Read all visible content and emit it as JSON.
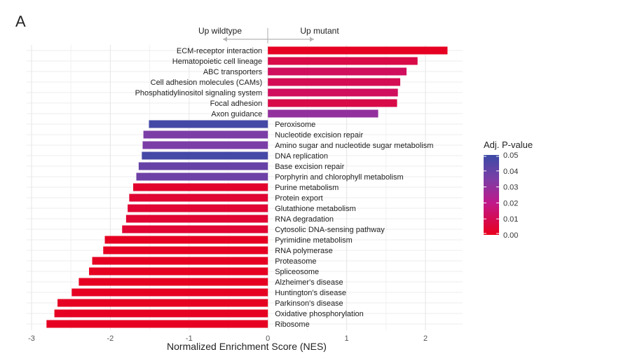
{
  "panel_label": "A",
  "chart_data": {
    "type": "bar",
    "orientation": "horizontal",
    "xlabel": "Normalized Enrichment Score (NES)",
    "xlim": [
      -3,
      2.5
    ],
    "xticks": [
      -3,
      -2,
      -1,
      0,
      1,
      2
    ],
    "xtick_labels": [
      "-3",
      "-2",
      "-1",
      "0",
      "1",
      "2"
    ],
    "direction_labels": {
      "left": "Up wildtype",
      "right": "Up mutant"
    },
    "colors": {
      "high": "#e8001c",
      "mid": "#d4107a",
      "low_mid": "#7b3ea6",
      "low": "#3b4ba6",
      "grid": "#ececec"
    },
    "legend": {
      "title": "Adj. P-value",
      "min": 0.0,
      "max": 0.05,
      "ticks": [
        "0.05",
        "0.04",
        "0.03",
        "0.02",
        "0.01",
        "0.00"
      ]
    },
    "categories": [
      "ECM-receptor interaction",
      "Hematopoietic cell lineage",
      "ABC transporters",
      "Cell adhesion molecules (CAMs)",
      "Phosphatidylinositol signaling system",
      "Focal adhesion",
      "Axon guidance",
      "Peroxisome",
      "Nucleotide excision repair",
      "Amino sugar and nucleotide sugar metabolism",
      "DNA replication",
      "Base excision repair",
      "Porphyrin and chlorophyll metabolism",
      "Purine metabolism",
      "Protein export",
      "Glutathione metabolism",
      "RNA degradation",
      "Cytosolic DNA-sensing pathway",
      "Pyrimidine metabolism",
      "RNA polymerase",
      "Proteasome",
      "Spliceosome",
      "Alzheimer's disease",
      "Huntington's disease",
      "Parkinson's disease",
      "Oxidative phosphorylation",
      "Ribosome"
    ],
    "values": [
      2.28,
      1.9,
      1.76,
      1.68,
      1.65,
      1.64,
      1.4,
      -1.51,
      -1.58,
      -1.59,
      -1.6,
      -1.64,
      -1.67,
      -1.71,
      -1.76,
      -1.78,
      -1.8,
      -1.85,
      -2.07,
      -2.09,
      -2.23,
      -2.27,
      -2.4,
      -2.49,
      -2.67,
      -2.71,
      -2.81
    ],
    "padj": [
      0.001,
      0.008,
      0.012,
      0.01,
      0.012,
      0.008,
      0.03,
      0.048,
      0.035,
      0.035,
      0.048,
      0.04,
      0.038,
      0.003,
      0.004,
      0.004,
      0.004,
      0.004,
      0.001,
      0.001,
      0.001,
      0.001,
      0.001,
      0.001,
      0.001,
      0.001,
      0.001
    ]
  }
}
